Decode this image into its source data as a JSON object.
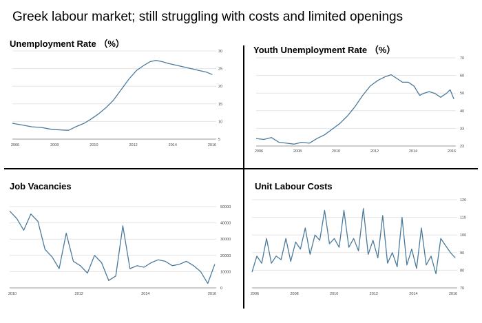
{
  "headline": "Greek labour market; still struggling with costs and limited openings",
  "theme": {
    "line_color": "#4a7a9b",
    "grid_color": "#e4e4e4",
    "divider_color": "#000000"
  },
  "chart_data": [
    {
      "id": "unemployment",
      "type": "line",
      "title": "Unemployment Rate",
      "unit": "（%）",
      "x_ticks": [
        "2006",
        "2008",
        "2010",
        "2012",
        "2014",
        "2016"
      ],
      "y_ticks": [
        "5",
        "10",
        "15",
        "20",
        "25",
        "30"
      ],
      "xlim": [
        2006,
        2016.5
      ],
      "ylim": [
        5,
        30
      ],
      "grid": true,
      "series": [
        {
          "x": [
            2006,
            2006.5,
            2007,
            2007.5,
            2008,
            2008.5,
            2008.9,
            2009.3,
            2009.7,
            2010,
            2010.4,
            2010.8,
            2011.2,
            2011.6,
            2012,
            2012.4,
            2012.8,
            2013.1,
            2013.4,
            2013.7,
            2014,
            2014.4,
            2014.8,
            2015.2,
            2015.6,
            2016,
            2016.3
          ],
          "y": [
            9.5,
            9,
            8.5,
            8.3,
            7.8,
            7.6,
            7.5,
            8.6,
            9.5,
            10.5,
            12,
            13.8,
            16,
            19,
            22,
            24.5,
            26,
            27,
            27.3,
            27,
            26.5,
            26,
            25.5,
            25,
            24.5,
            24,
            23.3
          ]
        }
      ]
    },
    {
      "id": "youth-unemployment",
      "type": "line",
      "title": "Youth Unemployment Rate",
      "unit": "（%）",
      "x_ticks": [
        "2006",
        "2008",
        "2010",
        "2012",
        "2014",
        "2016"
      ],
      "y_ticks": [
        "23",
        "33",
        "40",
        "50",
        "60",
        "70"
      ],
      "xlim": [
        2006,
        2016.5
      ],
      "ylim": [
        23,
        70
      ],
      "grid": true,
      "series": [
        {
          "x": [
            2006,
            2006.4,
            2006.8,
            2007.2,
            2007.6,
            2008,
            2008.4,
            2008.8,
            2009.2,
            2009.6,
            2010,
            2010.4,
            2010.8,
            2011.2,
            2011.6,
            2012,
            2012.4,
            2012.8,
            2013.1,
            2013.4,
            2013.7,
            2014,
            2014.3,
            2014.6,
            2014.8,
            2015.1,
            2015.4,
            2015.7,
            2016,
            2016.2,
            2016.4
          ],
          "y": [
            27,
            26.5,
            27.5,
            25,
            24.5,
            24,
            25,
            24.5,
            27,
            29,
            32,
            35,
            39,
            44,
            50,
            55,
            58,
            60,
            61,
            59,
            57,
            57,
            55,
            50,
            51,
            52,
            51,
            49,
            51,
            53,
            48
          ]
        }
      ]
    },
    {
      "id": "job-vacancies",
      "type": "line",
      "title": "Job Vacancies",
      "x_ticks": [
        "2010",
        "2012",
        "2014",
        "2016"
      ],
      "y_ticks": [
        "0",
        "10000",
        "20000",
        "30000",
        "40000",
        "50000"
      ],
      "xlim": [
        2009,
        2016.3
      ],
      "ylim": [
        0,
        55000
      ],
      "grid": true,
      "series": [
        {
          "x": [
            2009,
            2009.25,
            2009.5,
            2009.75,
            2010,
            2010.25,
            2010.5,
            2010.75,
            2011,
            2011.25,
            2011.5,
            2011.75,
            2012,
            2012.25,
            2012.5,
            2012.75,
            2013,
            2013.25,
            2013.5,
            2013.75,
            2014,
            2014.25,
            2014.5,
            2014.75,
            2015,
            2015.25,
            2015.5,
            2015.75,
            2016,
            2016.25
          ],
          "y": [
            52000,
            47000,
            39000,
            50000,
            45000,
            26000,
            21000,
            13000,
            37000,
            18000,
            15000,
            10000,
            22000,
            17000,
            5000,
            8000,
            42000,
            13000,
            15000,
            14000,
            17000,
            19000,
            18000,
            15000,
            16000,
            18000,
            15000,
            11000,
            3000,
            16000
          ]
        }
      ]
    },
    {
      "id": "unit-labour-costs",
      "type": "line",
      "title": "Unit Labour Costs",
      "x_ticks": [
        "2006",
        "2008",
        "2010",
        "2012",
        "2014",
        "2016"
      ],
      "y_ticks": [
        "70",
        "80",
        "90",
        "100",
        "110",
        "120"
      ],
      "xlim": [
        2006,
        2016.6
      ],
      "ylim": [
        70,
        120
      ],
      "grid": true,
      "series": [
        {
          "x": [
            2006,
            2006.25,
            2006.5,
            2006.75,
            2007,
            2007.25,
            2007.5,
            2007.75,
            2008,
            2008.25,
            2008.5,
            2008.75,
            2009,
            2009.25,
            2009.5,
            2009.75,
            2010,
            2010.25,
            2010.5,
            2010.75,
            2011,
            2011.25,
            2011.5,
            2011.75,
            2012,
            2012.25,
            2012.5,
            2012.75,
            2013,
            2013.25,
            2013.5,
            2013.75,
            2014,
            2014.25,
            2014.5,
            2014.75,
            2015,
            2015.25,
            2015.5,
            2015.75,
            2016,
            2016.25,
            2016.5
          ],
          "y": [
            79,
            88,
            84,
            98,
            84,
            88,
            86,
            98,
            85,
            96,
            92,
            104,
            89,
            100,
            97,
            114,
            95,
            98,
            93,
            114,
            93,
            98,
            91,
            115,
            89,
            97,
            87,
            111,
            84,
            90,
            82,
            110,
            83,
            92,
            81,
            104,
            83,
            88,
            78,
            98,
            94,
            90,
            87
          ]
        }
      ]
    }
  ]
}
